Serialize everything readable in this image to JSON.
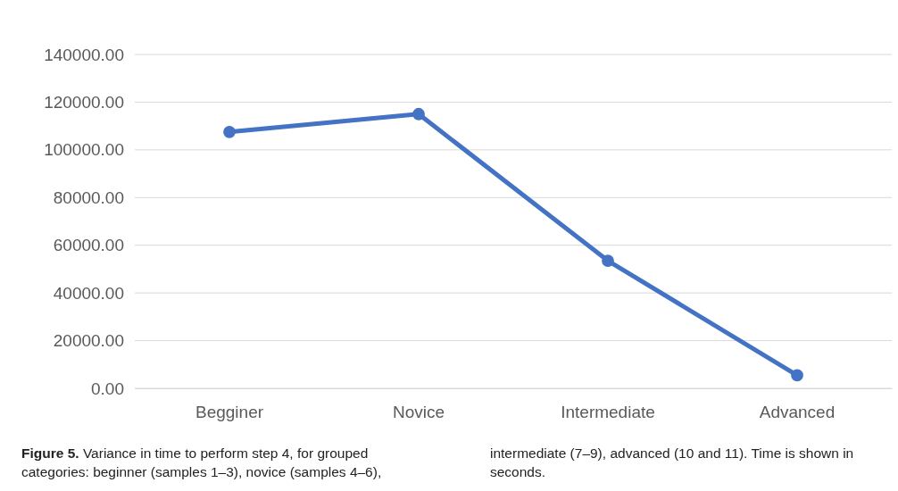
{
  "chart_data": {
    "type": "line",
    "categories": [
      "Begginer",
      "Novice",
      "Intermediate",
      "Advanced"
    ],
    "series": [
      {
        "color": "#4472c4",
        "values": [
          107500,
          115000,
          53500,
          5500
        ]
      }
    ],
    "ylim": [
      0,
      140000
    ],
    "yticks": [
      {
        "value": 0,
        "label": "0.00"
      },
      {
        "value": 20000,
        "label": "20000.00"
      },
      {
        "value": 40000,
        "label": "40000.00"
      },
      {
        "value": 60000,
        "label": "60000.00"
      },
      {
        "value": 80000,
        "label": "80000.00"
      },
      {
        "value": 100000,
        "label": "100000.00"
      },
      {
        "value": 120000,
        "label": "120000.00"
      },
      {
        "value": 140000,
        "label": "140000.00"
      }
    ],
    "grid": "y",
    "marker": "circle",
    "line_style": "solid",
    "annotations": [
      "Figure 5.",
      "Variance in time to perform step 4, for grouped categories: beginner (samples 1–3), novice (samples 4–6), intermediate (7–9), advanced (10 and 11). Time is shown in seconds."
    ]
  }
}
